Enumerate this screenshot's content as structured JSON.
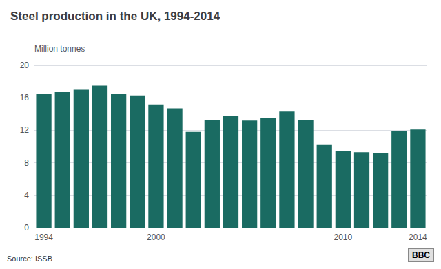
{
  "chart_data": {
    "type": "bar",
    "title": "Steel production in the UK, 1994-2014",
    "ylabel": "Million tonnes",
    "annotations": [
      "Source: ISSB",
      "BBC"
    ],
    "x": [
      1994,
      1995,
      1996,
      1997,
      1998,
      1999,
      2000,
      2001,
      2002,
      2003,
      2004,
      2005,
      2006,
      2007,
      2008,
      2009,
      2010,
      2011,
      2012,
      2013,
      2014
    ],
    "values": [
      16.5,
      16.7,
      17.0,
      17.5,
      16.5,
      16.3,
      15.2,
      14.7,
      11.8,
      13.3,
      13.8,
      13.2,
      13.5,
      14.3,
      13.3,
      10.2,
      9.5,
      9.3,
      9.2,
      11.9,
      12.1
    ],
    "color": "#1a6b62",
    "xlim": [
      1993.5,
      2014.5
    ],
    "xticks": [
      1994,
      2000,
      2010,
      2014
    ],
    "ylim": [
      0,
      20
    ],
    "yticks": [
      0,
      4,
      8,
      12,
      16,
      20
    ],
    "grid": true
  }
}
